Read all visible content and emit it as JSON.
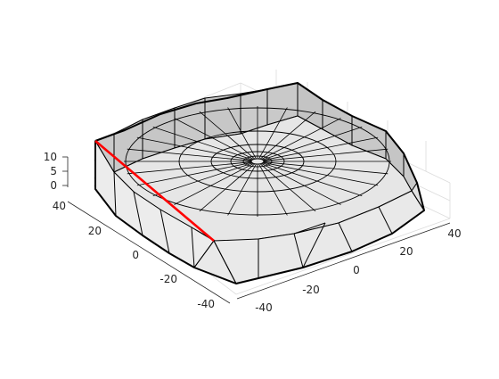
{
  "figure": {
    "ticks_z": [
      "10",
      "5",
      "0"
    ],
    "ticks_y": [
      "40",
      "20",
      "0",
      "-20",
      "-40"
    ],
    "ticks_x": [
      "-40",
      "-20",
      "0",
      "20",
      "40"
    ],
    "colors": {
      "edge": "#000000",
      "highlight": "#ff0000",
      "wall_light": "#e9e9e9",
      "wall_dark": "#c4c4c4",
      "floor": "#e6e6e6",
      "grid": "#dcdcdc"
    }
  }
}
